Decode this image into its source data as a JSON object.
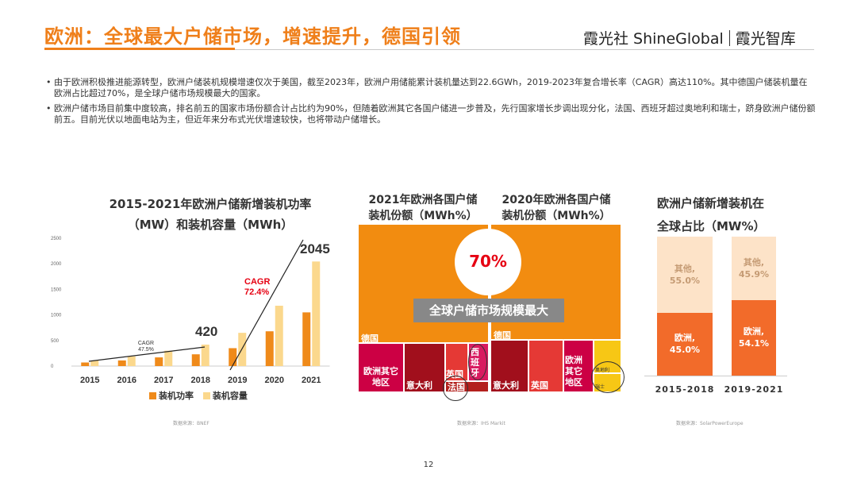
{
  "header": {
    "title": "欧洲：全球最大户储市场，增速提升，德国引领",
    "brand_left": "霞光社 ShineGlobal",
    "brand_right": "霞光智库"
  },
  "bullets": [
    "由于欧洲积极推进能源转型，欧洲户储装机规模增速仅次于美国，截至2023年，欧洲户用储能累计装机量达到22.6GWh，2019-2023年复合增长率（CAGR）高达110%。其中德国户储装机量在欧洲占比超过70%，是全球户储市场规模最大的国家。",
    "欧洲户储市场目前集中度较高，排名前五的国家市场份额合计占比约为90%，但随着欧洲其它各国户储进一步普及，先行国家增长步调出现分化，法国、西班牙超过奥地利和瑞士，跻身欧洲户储份额前五。目前光伏以地面电站为主，但近年来分布式光伏增速较快，也将带动户储增长。"
  ],
  "chart1": {
    "title_line1": "2015-2021年欧洲户储新增装机功率",
    "title_line2": "（MW）和装机容量（MWh）",
    "yticks": [
      "2500",
      "2000",
      "1500",
      "1000",
      "500",
      "0"
    ],
    "cagr1_label": "CAGR",
    "cagr1_value": "47.5%",
    "cagr2_label": "CAGR",
    "cagr2_value": "72.4%",
    "callout_2018": "420",
    "callout_2021": "2045",
    "legend_power": "装机功率",
    "legend_capacity": "装机容量",
    "source": "数据来源：BNEF",
    "colors": {
      "power": "#ef8a1a",
      "capacity": "#fbd88d",
      "accent_red": "#e60012"
    }
  },
  "chart_data": {
    "type": "bar",
    "title": "2015-2021年欧洲户储新增装机功率（MW）和装机容量（MWh）",
    "categories": [
      "2015",
      "2016",
      "2017",
      "2018",
      "2019",
      "2020",
      "2021"
    ],
    "ylim": [
      0,
      2500
    ],
    "series": [
      {
        "name": "装机功率",
        "values": [
          70,
          110,
          170,
          230,
          350,
          680,
          1050
        ]
      },
      {
        "name": "装机容量",
        "values": [
          110,
          190,
          300,
          420,
          650,
          1180,
          2045
        ]
      }
    ]
  },
  "chart2": {
    "title_left_line1": "2021年欧洲各国户储",
    "title_left_line2": "装机份额（MWh%）",
    "title_right_line1": "2020年欧洲各国户储",
    "title_right_line2": "装机份额（MWh%）",
    "center_pct": "70%",
    "banner": "全球户储市场规模最大",
    "left_labels": {
      "germany": "德国",
      "others": "欧洲其它地区",
      "italy": "意大利",
      "uk": "英国",
      "spain": "西班牙",
      "france": "法国"
    },
    "right_labels": {
      "germany": "德国",
      "italy": "意大利",
      "uk": "英国",
      "others": "欧洲其它地区",
      "austria": "奥地利",
      "swiss": "瑞士"
    },
    "source": "数据来源：IHS Markit"
  },
  "chart3": {
    "title_line1": "欧洲户储新增装机在",
    "title_line2": "全球占比（MW%）",
    "groups": [
      {
        "period": "2015-2018",
        "europe_label": "欧洲,",
        "europe_pct": "45.0%",
        "other_label": "其他,",
        "other_pct": "55.0%",
        "europe_value": 45.0
      },
      {
        "period": "2019-2021",
        "europe_label": "欧洲,",
        "europe_pct": "54.1%",
        "other_label": "其他,",
        "other_pct": "45.9%",
        "europe_value": 54.1
      }
    ],
    "source": "数据来源：SolarPowerEurope"
  },
  "footer": {
    "page": "12"
  }
}
